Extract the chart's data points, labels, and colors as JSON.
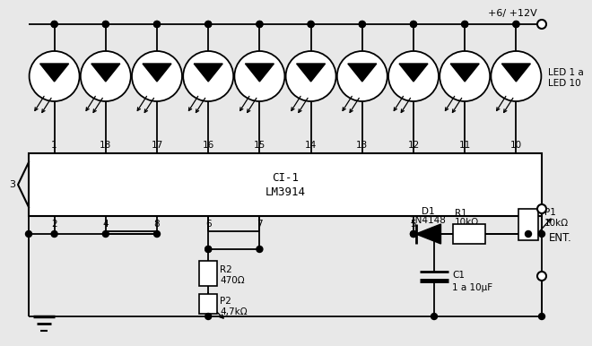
{
  "bg_color": "#e8e8e8",
  "ic_label1": "CI-1",
  "ic_label2": "LM3914",
  "top_pin_nums": [
    "1",
    "18",
    "17",
    "16",
    "15",
    "14",
    "13",
    "12",
    "11",
    "10"
  ],
  "bot_pin_nums": [
    "2",
    "4",
    "8",
    "6",
    "7",
    "5"
  ],
  "vcc_label": "+6/ +12V",
  "led_label1": "LED 1 a",
  "led_label2": "LED 10",
  "r2_label1": "R2",
  "r2_label2": "470Ω",
  "p2_label1": "P2",
  "p2_label2": "4,7kΩ",
  "d1_label1": "D1",
  "d1_label2": "1N4148",
  "r1_label1": "R1",
  "r1_label2": "10kΩ",
  "c1_label1": "C1",
  "c1_label2": "1 a 10μF",
  "p1_label1": "P1",
  "p1_label2": "10kΩ",
  "ent_label": "ENT."
}
